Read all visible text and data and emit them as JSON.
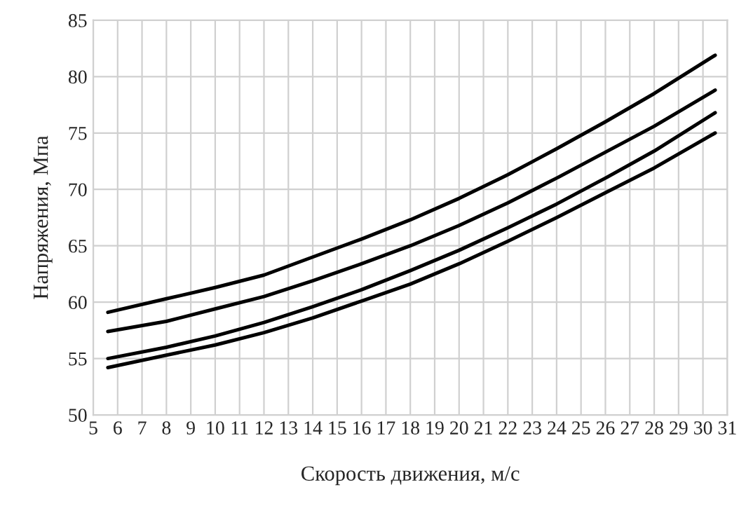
{
  "chart_data": {
    "type": "line",
    "xlabel": "Скорость движения, м/с",
    "ylabel": "Напряжения, Мпа",
    "x": [
      5.6,
      8,
      10,
      12,
      14,
      16,
      18,
      20,
      22,
      24,
      26,
      28,
      30.5
    ],
    "series": [
      {
        "color": "#000000",
        "values": [
          59.1,
          60.3,
          61.3,
          62.4,
          64.0,
          65.6,
          67.3,
          69.2,
          71.3,
          73.6,
          76.0,
          78.5,
          81.9
        ]
      },
      {
        "color": "#000000",
        "values": [
          57.4,
          58.3,
          59.4,
          60.5,
          61.9,
          63.4,
          65.0,
          66.8,
          68.8,
          71.0,
          73.3,
          75.6,
          78.8
        ]
      },
      {
        "color": "#000000",
        "values": [
          55.0,
          56.0,
          57.0,
          58.2,
          59.6,
          61.1,
          62.8,
          64.6,
          66.6,
          68.7,
          71.0,
          73.4,
          76.8
        ]
      },
      {
        "color": "#000000",
        "values": [
          54.2,
          55.3,
          56.2,
          57.3,
          58.6,
          60.1,
          61.6,
          63.4,
          65.4,
          67.5,
          69.7,
          71.9,
          75.0
        ]
      }
    ],
    "xlim": [
      5,
      31
    ],
    "xticks": [
      5,
      6,
      7,
      8,
      9,
      10,
      11,
      12,
      13,
      14,
      15,
      16,
      17,
      18,
      19,
      20,
      21,
      22,
      23,
      24,
      25,
      26,
      27,
      28,
      29,
      30,
      31
    ],
    "ylim": [
      50,
      85
    ],
    "yticks": [
      50,
      55,
      60,
      65,
      70,
      75,
      80,
      85
    ],
    "grid": true,
    "marker": "none",
    "line_style": "solid"
  }
}
